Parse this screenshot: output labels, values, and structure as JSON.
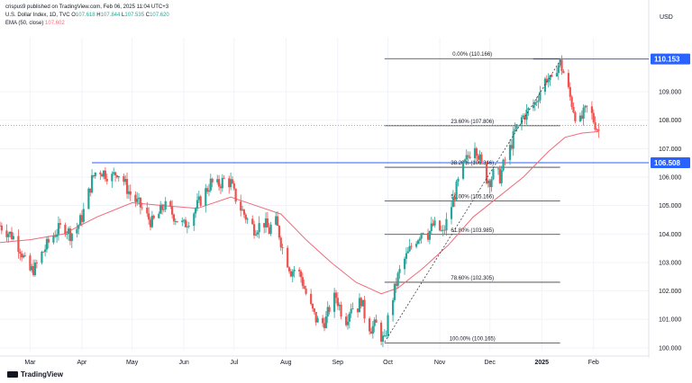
{
  "header": {
    "published": "crispus9 published on TradingView.com, Feb 06, 2025 11:04 UTC+3",
    "symbol_line_prefix": "U.S. Dollar Index, 1D, TVC ",
    "ohlc": [
      {
        "label": "O",
        "value": "107.618"
      },
      {
        "label": "H",
        "value": "107.844"
      },
      {
        "label": "L",
        "value": "107.535"
      },
      {
        "label": "C",
        "value": "107.620"
      }
    ],
    "ema_label": "EMA (50, close) ",
    "ema_value": "107.602",
    "currency": "USD"
  },
  "logo_text": "TradingView",
  "colors": {
    "up": "#26a69a",
    "down": "#ef5350",
    "ema": "#f06b7a",
    "hline": "#2962ff",
    "tag": "#2962ff",
    "fib": "#3c3c3c",
    "grid": "#f0f3fa"
  },
  "chart_data": {
    "type": "candlestick",
    "y_ticks": [
      "100.000",
      "101.000",
      "102.000",
      "103.000",
      "104.000",
      "105.000",
      "106.000",
      "107.000",
      "108.000",
      "109.000"
    ],
    "ylim": [
      99.9,
      110.9
    ],
    "x_ticks": [
      {
        "label": "Mar",
        "day": 0
      },
      {
        "label": "Apr",
        "day": 31
      },
      {
        "label": "May",
        "day": 61
      },
      {
        "label": "Jun",
        "day": 92
      },
      {
        "label": "Jul",
        "day": 122
      },
      {
        "label": "Aug",
        "day": 153
      },
      {
        "label": "Sep",
        "day": 184
      },
      {
        "label": "Oct",
        "day": 214
      },
      {
        "label": "Nov",
        "day": 245
      },
      {
        "label": "Dec",
        "day": 275
      },
      {
        "label": "2025",
        "day": 306
      },
      {
        "label": "Feb",
        "day": 337
      }
    ],
    "xlim_days": [
      -18,
      370
    ],
    "horizontal_levels": [
      {
        "value": 110.153,
        "label": "110.153"
      },
      {
        "value": 106.508,
        "label": "106.508"
      }
    ],
    "dotted_level": 107.82,
    "fibonacci": {
      "x_start_day": 212,
      "x_end_day": 317,
      "levels": [
        {
          "value": 110.166,
          "label": "0.00% (110.166)"
        },
        {
          "value": 107.806,
          "label": "23.60% (107.806)"
        },
        {
          "value": 106.346,
          "label": "38.20% (106.346)"
        },
        {
          "value": 105.166,
          "label": "50.00% (105.166)"
        },
        {
          "value": 103.985,
          "label": "61.80% (103.985)"
        },
        {
          "value": 102.305,
          "label": "78.60% (102.305)"
        },
        {
          "value": 100.165,
          "label": "100.00% (100.165)"
        }
      ]
    },
    "price_path": [
      [
        -18,
        104.3
      ],
      [
        -14,
        104.1
      ],
      [
        -10,
        103.9
      ],
      [
        -6,
        103.5
      ],
      [
        -3,
        103.0
      ],
      [
        0,
        102.7
      ],
      [
        3,
        102.8
      ],
      [
        6,
        103.2
      ],
      [
        10,
        103.6
      ],
      [
        13,
        103.9
      ],
      [
        16,
        104.1
      ],
      [
        20,
        104.3
      ],
      [
        24,
        104.0
      ],
      [
        28,
        104.2
      ],
      [
        31,
        104.6
      ],
      [
        34,
        105.2
      ],
      [
        37,
        105.9
      ],
      [
        40,
        106.3
      ],
      [
        43,
        106.2
      ],
      [
        46,
        106.1
      ],
      [
        49,
        106.0
      ],
      [
        52,
        106.2
      ],
      [
        55,
        106.0
      ],
      [
        58,
        105.6
      ],
      [
        61,
        105.3
      ],
      [
        64,
        105.1
      ],
      [
        67,
        104.9
      ],
      [
        70,
        104.6
      ],
      [
        73,
        104.4
      ],
      [
        76,
        104.6
      ],
      [
        80,
        105.0
      ],
      [
        84,
        104.8
      ],
      [
        88,
        104.5
      ],
      [
        92,
        104.3
      ],
      [
        96,
        104.6
      ],
      [
        100,
        105.0
      ],
      [
        104,
        105.4
      ],
      [
        108,
        105.8
      ],
      [
        112,
        105.7
      ],
      [
        116,
        105.9
      ],
      [
        120,
        105.8
      ],
      [
        122,
        105.4
      ],
      [
        125,
        105.0
      ],
      [
        128,
        104.7
      ],
      [
        131,
        104.4
      ],
      [
        134,
        104.2
      ],
      [
        137,
        104.3
      ],
      [
        140,
        104.4
      ],
      [
        143,
        104.1
      ],
      [
        146,
        104.6
      ],
      [
        149,
        104.0
      ],
      [
        151,
        103.5
      ],
      [
        153,
        103.2
      ],
      [
        156,
        102.7
      ],
      [
        159,
        102.8
      ],
      [
        162,
        102.5
      ],
      [
        165,
        101.9
      ],
      [
        168,
        101.4
      ],
      [
        171,
        101.0
      ],
      [
        174,
        100.8
      ],
      [
        177,
        101.0
      ],
      [
        180,
        101.6
      ],
      [
        183,
        101.8
      ],
      [
        186,
        101.3
      ],
      [
        189,
        101.0
      ],
      [
        192,
        101.5
      ],
      [
        195,
        101.3
      ],
      [
        198,
        101.7
      ],
      [
        201,
        100.9
      ],
      [
        204,
        100.7
      ],
      [
        207,
        100.8
      ],
      [
        210,
        100.4
      ],
      [
        212,
        100.2
      ],
      [
        214,
        101.0
      ],
      [
        217,
        101.8
      ],
      [
        220,
        102.5
      ],
      [
        223,
        103.0
      ],
      [
        226,
        103.3
      ],
      [
        229,
        103.7
      ],
      [
        232,
        103.9
      ],
      [
        235,
        104.2
      ],
      [
        238,
        104.0
      ],
      [
        241,
        104.3
      ],
      [
        244,
        104.2
      ],
      [
        247,
        104.0
      ],
      [
        249,
        104.4
      ],
      [
        252,
        105.0
      ],
      [
        255,
        105.6
      ],
      [
        258,
        106.2
      ],
      [
        261,
        106.6
      ],
      [
        264,
        107.0
      ],
      [
        266,
        107.2
      ],
      [
        269,
        106.6
      ],
      [
        272,
        106.0
      ],
      [
        275,
        105.9
      ],
      [
        278,
        106.2
      ],
      [
        281,
        106.0
      ],
      [
        284,
        106.6
      ],
      [
        287,
        107.0
      ],
      [
        290,
        107.6
      ],
      [
        293,
        108.0
      ],
      [
        296,
        108.2
      ],
      [
        299,
        108.4
      ],
      [
        302,
        108.6
      ],
      [
        304,
        108.9
      ],
      [
        306,
        109.2
      ],
      [
        309,
        109.5
      ],
      [
        312,
        109.3
      ],
      [
        315,
        109.9
      ],
      [
        317,
        110.0
      ],
      [
        320,
        109.5
      ],
      [
        323,
        108.8
      ],
      [
        326,
        108.2
      ],
      [
        328,
        107.8
      ],
      [
        331,
        108.2
      ],
      [
        334,
        108.5
      ],
      [
        337,
        108.0
      ],
      [
        340,
        107.62
      ]
    ],
    "ema_path": [
      [
        -18,
        103.7
      ],
      [
        0,
        103.8
      ],
      [
        20,
        104.0
      ],
      [
        40,
        104.6
      ],
      [
        61,
        105.1
      ],
      [
        80,
        105.0
      ],
      [
        100,
        104.9
      ],
      [
        120,
        105.3
      ],
      [
        135,
        105.0
      ],
      [
        150,
        104.7
      ],
      [
        165,
        103.8
      ],
      [
        180,
        103.0
      ],
      [
        195,
        102.3
      ],
      [
        210,
        101.9
      ],
      [
        220,
        102.1
      ],
      [
        235,
        102.8
      ],
      [
        250,
        103.6
      ],
      [
        265,
        104.6
      ],
      [
        280,
        105.3
      ],
      [
        295,
        106.0
      ],
      [
        310,
        106.9
      ],
      [
        320,
        107.4
      ],
      [
        330,
        107.55
      ],
      [
        340,
        107.6
      ]
    ],
    "dotted_trend": [
      [
        212,
        100.2
      ],
      [
        317,
        110.1
      ]
    ]
  }
}
